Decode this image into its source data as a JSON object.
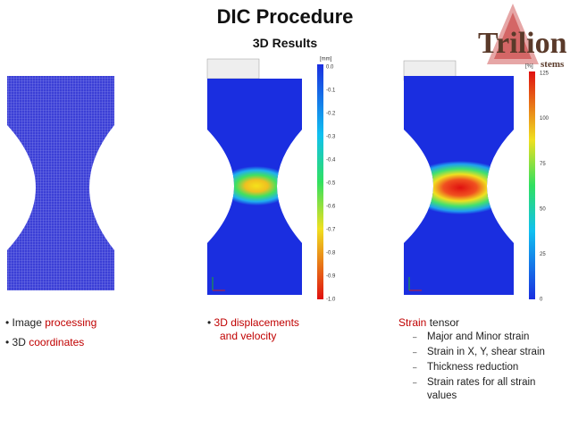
{
  "header": {
    "title": "DIC Procedure",
    "subtitle": "3D Results"
  },
  "logo": {
    "name": "Trilion",
    "tagline": "stems"
  },
  "panels": [
    {
      "unit": "[mm]",
      "scale": [
        "0.0",
        "-0.1",
        "-0.2",
        "-0.3",
        "-0.4",
        "-0.5",
        "-0.6",
        "-0.7",
        "-0.8",
        "-0.9",
        "-1.0"
      ]
    },
    {
      "unit": "[%]",
      "scale": [
        "125",
        "100",
        "75",
        "50",
        "25",
        "0"
      ]
    }
  ],
  "columns": [
    {
      "items": [
        [
          "Image ",
          "processing"
        ],
        [
          "3D ",
          "coordinates"
        ]
      ]
    },
    {
      "items": [
        [
          "3D displacements",
          "and velocity"
        ]
      ]
    },
    {
      "items": [
        [
          "Strain",
          " tensor"
        ]
      ],
      "subitems": [
        "Major and Minor strain",
        "Strain in X, Y, shear strain",
        "Thickness reduction",
        "Strain rates for all strain values"
      ]
    }
  ]
}
